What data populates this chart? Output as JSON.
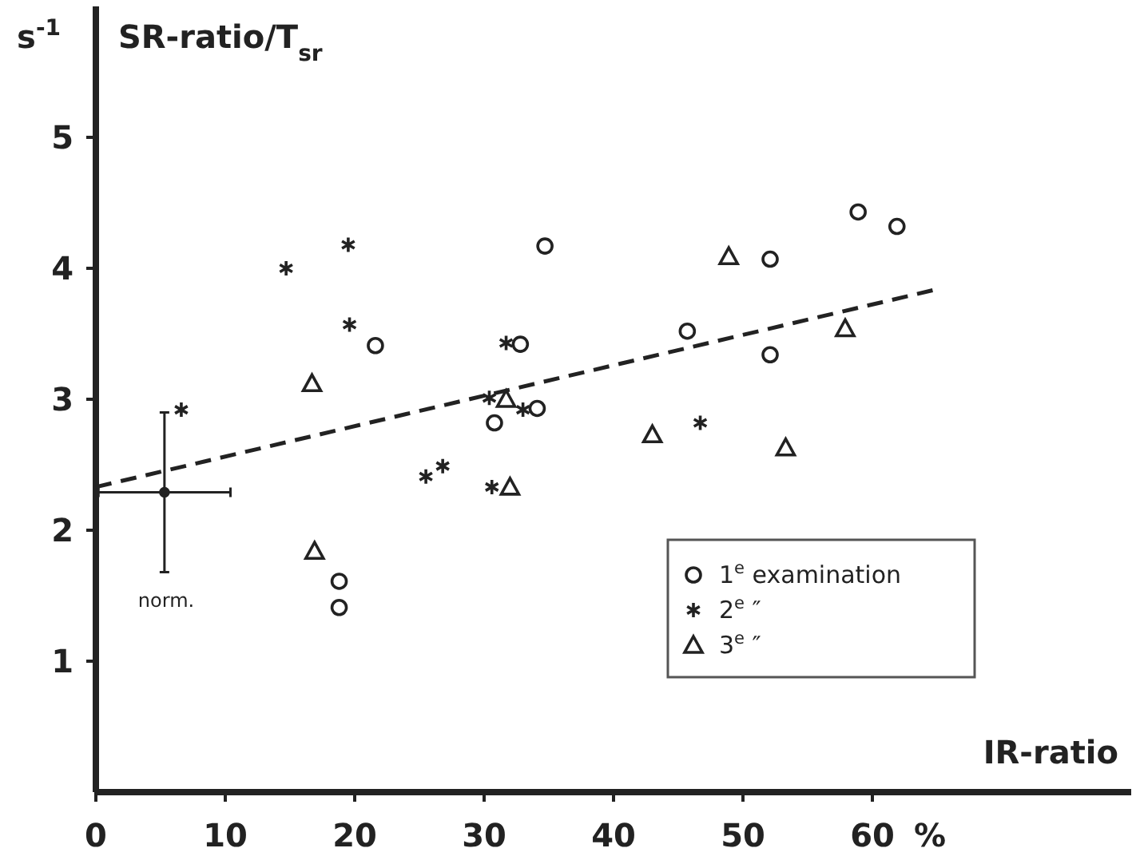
{
  "chart_data": {
    "type": "scatter",
    "xlabel": "IR-ratio",
    "ylabel": "SR-ratio/T$_{sr}$",
    "annotations": [
      "s$^{-1}$",
      "%",
      "norm."
    ],
    "xlim": [
      0,
      80
    ],
    "ylim": [
      0,
      6
    ],
    "xticks": [
      0,
      10,
      20,
      30,
      40,
      50,
      60
    ],
    "yticks": [
      1,
      2,
      3,
      4,
      5
    ],
    "grid": false,
    "legend": "bottom right",
    "series": [
      {
        "name": "1$^{e}$ examination",
        "color": "#222222",
        "marker": "circle",
        "x": [
          21.6,
          34.7,
          32.8,
          34.1,
          30.8,
          18.8,
          18.8,
          58.9,
          61.9,
          52.1,
          45.7,
          52.1
        ],
        "values": [
          3.41,
          4.17,
          3.42,
          2.93,
          2.82,
          1.61,
          1.41,
          4.43,
          4.32,
          4.07,
          3.52,
          3.34
        ]
      },
      {
        "name": "2$^{e}$ ″",
        "color": "#222222",
        "marker": "cross",
        "x": [
          6.6,
          14.7,
          19.5,
          19.6,
          31.7,
          30.4,
          33.0,
          25.5,
          26.8,
          30.6,
          46.7
        ],
        "values": [
          2.92,
          4.0,
          4.18,
          3.57,
          3.43,
          3.01,
          2.92,
          2.41,
          2.49,
          2.33,
          2.82
        ]
      },
      {
        "name": "3$^{e}$ ″",
        "color": "#222222",
        "marker": "triangle",
        "x": [
          16.7,
          31.7,
          16.9,
          32.0,
          48.9,
          57.9,
          43.0,
          53.3
        ],
        "values": [
          3.12,
          3.0,
          1.84,
          2.33,
          4.09,
          3.54,
          2.73,
          2.63
        ]
      },
      {
        "color": "#222222",
        "marker": "circle",
        "x": [
          5.3
        ],
        "values": [
          2.29
        ],
        "errors": [
          [
            1.68,
            2.9
          ]
        ],
        "xerrors": [
          [
            0.2,
            10.4
          ]
        ]
      },
      {
        "type": "line",
        "color": "#222222",
        "marker": "none",
        "line_style": "dashed",
        "x": [
          0,
          65
        ],
        "values": [
          2.33,
          3.84
        ]
      }
    ]
  }
}
